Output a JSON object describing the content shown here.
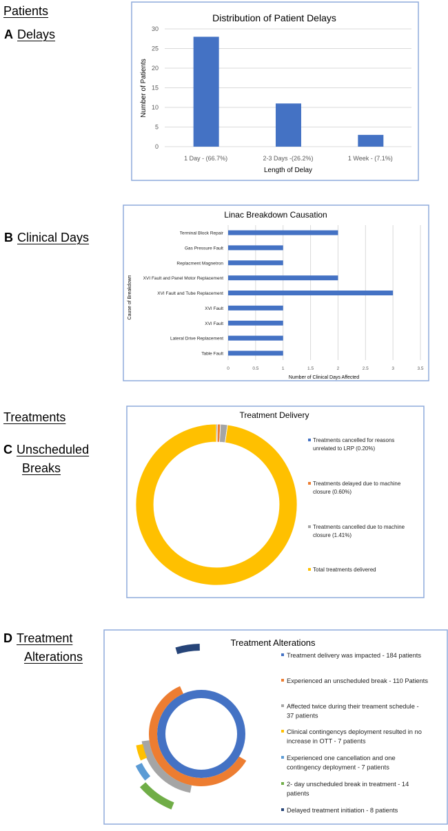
{
  "labels": {
    "patients": "Patients",
    "a_letter": "A",
    "a_text": "Delays",
    "b_letter": "B",
    "b_text": "Clinical Days",
    "treatments": "Treatments",
    "c_letter": "C",
    "c_text1": "Unscheduled",
    "c_text2": "Breaks",
    "d_letter": "D",
    "d_text1": "Treatment",
    "d_text2": "Alterations"
  },
  "colors": {
    "blue": "#4472c4",
    "orange": "#ed7d31",
    "gray": "#a5a5a5",
    "yellow": "#ffc000",
    "lightblue": "#5b9bd5",
    "green": "#70ad47",
    "darkblue": "#264478"
  },
  "chart_data": [
    {
      "type": "bar",
      "title": "Distribution of Patient Delays",
      "xlabel": "Length of Delay",
      "ylabel": "Number of Patients",
      "categories": [
        "1 Day - (66.7%)",
        "2-3 Days -(26.2%)",
        "1 Week - (7.1%)"
      ],
      "values": [
        28,
        11,
        3
      ],
      "ylim": [
        0,
        30
      ],
      "yticks": [
        "0",
        "5",
        "10",
        "15",
        "20",
        "25",
        "30"
      ],
      "grid": true
    },
    {
      "type": "bar",
      "orientation": "horizontal",
      "title": "Linac Breakdown Causation",
      "xlabel": "Number of Clinical Days Affected",
      "ylabel": "Cause of Breakdown",
      "categories": [
        "Terminal Block Repair",
        "Gas Pressure Fault",
        "Replacment Magnetron",
        "XVI Fault and Panel Motor Replacement",
        "XVI Fault and Tube Replacement",
        "XVI Fault",
        "XVI Fault",
        "Lateral Drive Replacement",
        "Table Fault"
      ],
      "values": [
        2,
        1,
        1,
        2,
        3,
        1,
        1,
        1,
        1
      ],
      "xlim": [
        0,
        3.5
      ],
      "xticks": [
        "0",
        "0.5",
        "1",
        "1.5",
        "2",
        "2.5",
        "3",
        "3.5"
      ],
      "grid": true
    },
    {
      "type": "pie",
      "donut": true,
      "title": "Treatment Delivery",
      "legend": "right",
      "slices": [
        {
          "label": "Treatments cancelled for reasons unrelated to LRP (0.20%)",
          "lines": [
            "Treatments cancelled for reasons",
            "unrelated to LRP (0.20%)"
          ],
          "value": 0.2,
          "color": "#4472c4"
        },
        {
          "label": "Treatments delayed due to machine closure (0.60%)",
          "lines": [
            "Treatments delayed due to machine",
            "closure (0.60%)"
          ],
          "value": 0.6,
          "color": "#ed7d31"
        },
        {
          "label": "Treatments cancelled due to machine closure (1.41%)",
          "lines": [
            "Treatments cancelled due to machine",
            "closure (1.41%)"
          ],
          "value": 1.41,
          "color": "#a5a5a5"
        },
        {
          "label": "Total treatments delivered",
          "lines": [
            "Total treatments delivered"
          ],
          "value": 97.79,
          "color": "#ffc000"
        }
      ]
    },
    {
      "type": "pie",
      "donut": true,
      "title": "Treatment Alterations",
      "legend": "right",
      "total": 184,
      "series": [
        {
          "label": "Treatment delivery was impacted - 184 patients",
          "lines": [
            "Treatment delivery was impacted - 184 patients"
          ],
          "value": 184,
          "color": "#4472c4"
        },
        {
          "label": "Experienced an unscheduled break - 110 Patients",
          "lines": [
            "Experienced an unscheduled break - 110 Patients"
          ],
          "value": 110,
          "color": "#ed7d31"
        },
        {
          "label": "Affected twice during their treament schedule - 37 patients",
          "lines": [
            "Affected twice during their treament schedule -",
            "37 patients"
          ],
          "value": 37,
          "color": "#a5a5a5"
        },
        {
          "label": "Clinical contingencys deployment resulted in no increase in OTT - 7 patients",
          "lines": [
            "Clinical contingencys deployment resulted in no",
            "increase in OTT - 7 patients"
          ],
          "value": 7,
          "color": "#ffc000"
        },
        {
          "label": "Experienced one cancellation and one contingency deployment - 7 patients",
          "lines": [
            "Experienced one cancellation and one",
            "contingency deployment - 7 patients"
          ],
          "value": 7,
          "color": "#5b9bd5"
        },
        {
          "label": "2- day unscheduled break in treatment - 14 patients",
          "lines": [
            "2- day unscheduled break in treatment - 14",
            "patients"
          ],
          "value": 14,
          "color": "#70ad47"
        },
        {
          "label": "Delayed treatment initiation - 8 patients",
          "lines": [
            "Delayed treatment initiation - 8 patients"
          ],
          "value": 8,
          "color": "#264478"
        }
      ]
    }
  ]
}
